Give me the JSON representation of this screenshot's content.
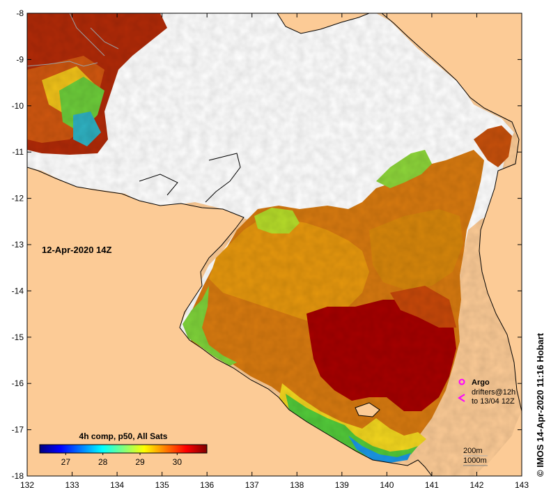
{
  "map": {
    "date_label": "12-Apr-2020 14Z",
    "credit": "© IMOS 14-Apr-2020 11:16 Hobart",
    "x_ticks": [
      "132",
      "133",
      "134",
      "135",
      "136",
      "137",
      "138",
      "139",
      "140",
      "141",
      "142",
      "143"
    ],
    "y_ticks": [
      "-8",
      "-9",
      "-10",
      "-11",
      "-12",
      "-13",
      "-14",
      "-15",
      "-16",
      "-17",
      "-18"
    ],
    "lon_range": [
      132,
      143
    ],
    "lat_range": [
      -18,
      -8
    ]
  },
  "colorbar": {
    "title": "4h comp, p50, All Sats",
    "ticks": [
      "27",
      "28",
      "29",
      "30"
    ],
    "tick_values": [
      27,
      28,
      29,
      30
    ],
    "range": [
      26.3,
      30.8
    ],
    "colors": [
      "#00007f",
      "#0000ff",
      "#007fff",
      "#00ffff",
      "#7fff7f",
      "#ffff00",
      "#ff7f00",
      "#ff0000",
      "#7f0000"
    ]
  },
  "legend": {
    "argo_label": "Argo",
    "drifters_line1": "drifters@12h",
    "drifters_line2": "to 13/04 12Z",
    "scale_line1": "200m",
    "scale_line2": "1000m",
    "argo_color": "#ff00ff",
    "drifter_color": "#ff00ff"
  },
  "colors": {
    "land": "#fccb96",
    "no_data": "#ffffff",
    "warm_max": "#a80000",
    "warm": "#cc5a00",
    "mid": "#e39216",
    "cool": "#f7d21c",
    "green": "#5acd3c",
    "blue": "#1c9de0"
  }
}
